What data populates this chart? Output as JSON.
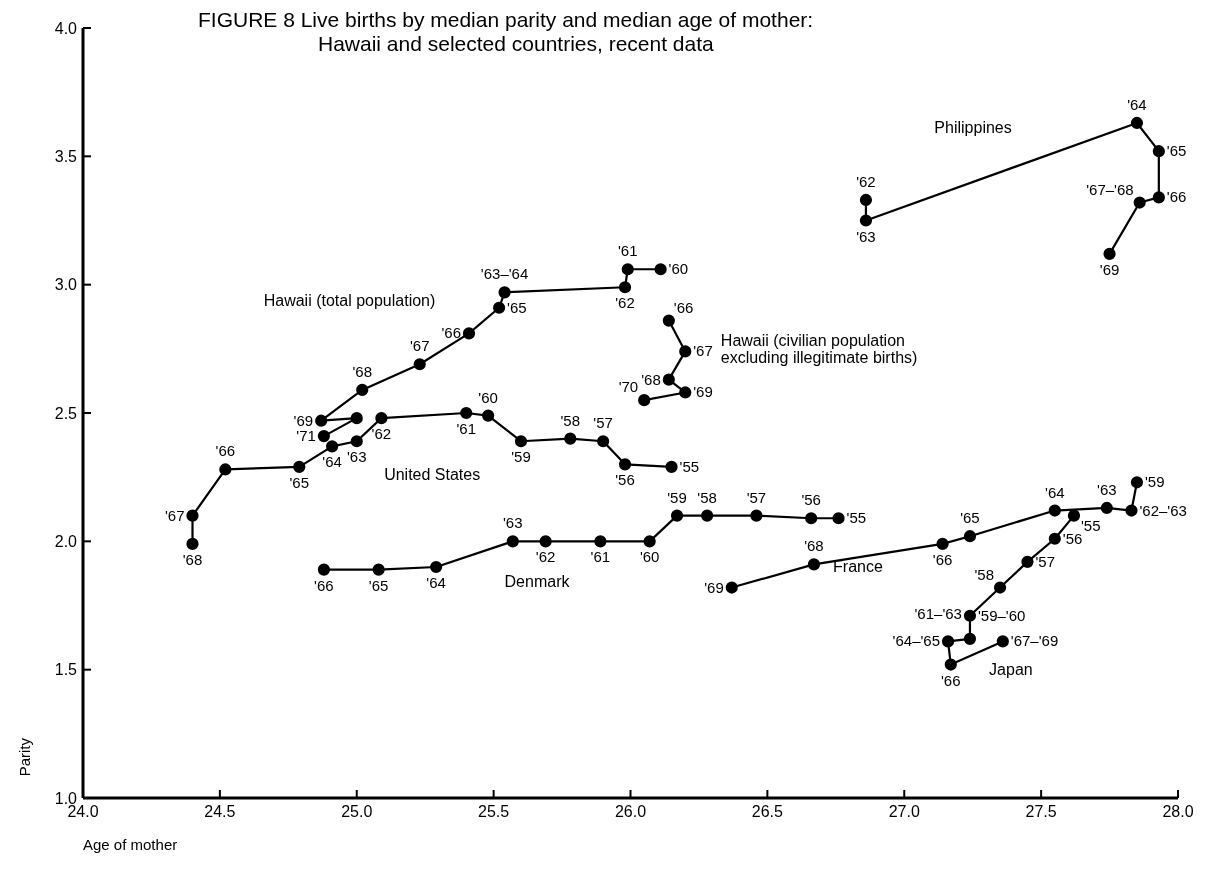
{
  "chart_data": {
    "type": "line",
    "title": "FIGURE 8  Live births by median parity and median age of mother:\nHawaii and selected countries, recent data",
    "xlabel": "Age of mother",
    "ylabel": "Parity",
    "marker": "circle",
    "xlim": [
      24,
      28
    ],
    "ylim": [
      1,
      4
    ],
    "xticks": [
      {
        "value": 24,
        "label": "24.0"
      },
      24.5,
      {
        "value": 25,
        "label": "25.0"
      },
      25.5,
      {
        "value": 26,
        "label": "26.0"
      },
      26.5,
      {
        "value": 27,
        "label": "27.0"
      },
      27.5,
      {
        "value": 28,
        "label": "28.0"
      }
    ],
    "yticks": [
      {
        "value": 1,
        "label": "1.0"
      },
      1.5,
      {
        "value": 2,
        "label": "2.0"
      },
      2.5,
      {
        "value": 3,
        "label": "3.0"
      },
      3.5,
      {
        "value": 4,
        "label": "4.0"
      }
    ],
    "series": [
      {
        "name": "Hawaii (total population)",
        "color": "#000000",
        "x": [
          26.11,
          25.99,
          25.98,
          25.54,
          25.52,
          25.41,
          25.23,
          25.02,
          24.87,
          25.0,
          24.88
        ],
        "values": [
          3.06,
          3.06,
          2.99,
          2.97,
          2.91,
          2.81,
          2.69,
          2.59,
          2.47,
          2.48,
          2.41
        ]
      },
      {
        "name": "Hawaii (civilian population\nexcluding illegitimate births)",
        "color": "#000000",
        "x": [
          26.14,
          26.2,
          26.14,
          26.2,
          26.05
        ],
        "values": [
          2.86,
          2.74,
          2.63,
          2.58,
          2.55
        ]
      },
      {
        "name": "United States",
        "color": "#000000",
        "x": [
          26.15,
          25.98,
          25.9,
          25.78,
          25.6,
          25.48,
          25.4,
          25.09,
          25.0,
          24.91,
          24.79,
          24.52,
          24.4,
          24.4
        ],
        "values": [
          2.29,
          2.3,
          2.39,
          2.4,
          2.39,
          2.49,
          2.5,
          2.48,
          2.39,
          2.37,
          2.29,
          2.28,
          2.1,
          1.99
        ]
      },
      {
        "name": "Denmark",
        "color": "#000000",
        "x": [
          26.76,
          26.66,
          26.46,
          26.28,
          26.17,
          26.07,
          25.89,
          25.69,
          25.57,
          25.29,
          25.08,
          24.88
        ],
        "values": [
          2.09,
          2.09,
          2.1,
          2.1,
          2.1,
          2.0,
          2.0,
          2.0,
          2.0,
          1.9,
          1.89,
          1.89
        ]
      },
      {
        "name": "France",
        "color": "#000000",
        "x": [
          26.37,
          26.67,
          27.14,
          27.24,
          27.55,
          27.74,
          27.83,
          27.85
        ],
        "values": [
          1.82,
          1.91,
          1.99,
          2.02,
          2.12,
          2.13,
          2.12,
          2.23
        ]
      },
      {
        "name": "Japan",
        "color": "#000000",
        "x": [
          27.62,
          27.55,
          27.45,
          27.35,
          27.24,
          27.24,
          27.16,
          27.17,
          27.36
        ],
        "values": [
          2.1,
          2.01,
          1.92,
          1.82,
          1.71,
          1.62,
          1.61,
          1.52,
          1.61
        ]
      },
      {
        "name": "Philippines",
        "color": "#000000",
        "x": [
          26.86,
          26.86,
          27.85,
          27.93,
          27.93,
          27.86,
          27.75
        ],
        "values": [
          3.33,
          3.25,
          3.63,
          3.52,
          3.34,
          3.32,
          3.12
        ]
      }
    ],
    "annotations": [
      {
        "text": "'60",
        "x": 26.11,
        "y": 3.06
      },
      {
        "text": "'61",
        "x": 25.99,
        "y": 3.06
      },
      {
        "text": "'62",
        "x": 25.98,
        "y": 2.99
      },
      {
        "text": "'63–'64",
        "x": 25.54,
        "y": 2.97
      },
      {
        "text": "'65",
        "x": 25.52,
        "y": 2.91
      },
      {
        "text": "'66",
        "x": 25.41,
        "y": 2.81
      },
      {
        "text": "'67",
        "x": 25.23,
        "y": 2.69
      },
      {
        "text": "'68",
        "x": 25.02,
        "y": 2.59
      },
      {
        "text": "'69",
        "x": 24.87,
        "y": 2.47
      },
      {
        "text": "'71",
        "x": 24.88,
        "y": 2.41
      },
      {
        "text": "'66",
        "x": 26.14,
        "y": 2.86
      },
      {
        "text": "'67",
        "x": 26.2,
        "y": 2.74
      },
      {
        "text": "'68",
        "x": 26.14,
        "y": 2.63
      },
      {
        "text": "'69",
        "x": 26.2,
        "y": 2.58
      },
      {
        "text": "'70",
        "x": 26.05,
        "y": 2.55
      },
      {
        "text": "'55",
        "x": 26.15,
        "y": 2.29
      },
      {
        "text": "'56",
        "x": 25.98,
        "y": 2.3
      },
      {
        "text": "'57",
        "x": 25.9,
        "y": 2.39
      },
      {
        "text": "'58",
        "x": 25.78,
        "y": 2.4
      },
      {
        "text": "'59",
        "x": 25.6,
        "y": 2.39
      },
      {
        "text": "'60",
        "x": 25.48,
        "y": 2.49
      },
      {
        "text": "'61",
        "x": 25.4,
        "y": 2.5
      },
      {
        "text": "'62",
        "x": 25.09,
        "y": 2.48
      },
      {
        "text": "'63",
        "x": 25.0,
        "y": 2.39
      },
      {
        "text": "'64",
        "x": 24.91,
        "y": 2.37
      },
      {
        "text": "'65",
        "x": 24.79,
        "y": 2.29
      },
      {
        "text": "'66",
        "x": 24.52,
        "y": 2.28
      },
      {
        "text": "'67",
        "x": 24.4,
        "y": 2.1
      },
      {
        "text": "'68",
        "x": 24.4,
        "y": 1.99
      },
      {
        "text": "'55",
        "x": 26.76,
        "y": 2.09
      },
      {
        "text": "'56",
        "x": 26.66,
        "y": 2.09
      },
      {
        "text": "'57",
        "x": 26.46,
        "y": 2.1
      },
      {
        "text": "'58",
        "x": 26.28,
        "y": 2.1
      },
      {
        "text": "'59",
        "x": 26.17,
        "y": 2.1
      },
      {
        "text": "'60",
        "x": 26.07,
        "y": 2.0
      },
      {
        "text": "'61",
        "x": 25.89,
        "y": 2.0
      },
      {
        "text": "'62",
        "x": 25.69,
        "y": 2.0
      },
      {
        "text": "'63",
        "x": 25.57,
        "y": 2.0
      },
      {
        "text": "'64",
        "x": 25.29,
        "y": 1.9
      },
      {
        "text": "'65",
        "x": 25.08,
        "y": 1.89
      },
      {
        "text": "'66",
        "x": 24.88,
        "y": 1.89
      },
      {
        "text": "'69",
        "x": 26.37,
        "y": 1.82
      },
      {
        "text": "'68",
        "x": 26.67,
        "y": 1.91
      },
      {
        "text": "'66",
        "x": 27.14,
        "y": 1.99
      },
      {
        "text": "'65",
        "x": 27.24,
        "y": 2.02
      },
      {
        "text": "'64",
        "x": 27.55,
        "y": 2.12
      },
      {
        "text": "'63",
        "x": 27.74,
        "y": 2.13
      },
      {
        "text": "'62–'63",
        "x": 27.83,
        "y": 2.12
      },
      {
        "text": "'59",
        "x": 27.85,
        "y": 2.23
      },
      {
        "text": "'55",
        "x": 27.62,
        "y": 2.1
      },
      {
        "text": "'56",
        "x": 27.55,
        "y": 2.01
      },
      {
        "text": "'57",
        "x": 27.45,
        "y": 1.92
      },
      {
        "text": "'58",
        "x": 27.35,
        "y": 1.82
      },
      {
        "text": "'59–'60",
        "x": 27.24,
        "y": 1.71
      },
      {
        "text": "'61–'63",
        "x": 27.24,
        "y": 1.62
      },
      {
        "text": "'64–'65",
        "x": 27.16,
        "y": 1.61
      },
      {
        "text": "'66",
        "x": 27.17,
        "y": 1.52
      },
      {
        "text": "'67–'69",
        "x": 27.36,
        "y": 1.61
      },
      {
        "text": "'62",
        "x": 26.86,
        "y": 3.33
      },
      {
        "text": "'63",
        "x": 26.86,
        "y": 3.25
      },
      {
        "text": "'64",
        "x": 27.85,
        "y": 3.63
      },
      {
        "text": "'65",
        "x": 27.93,
        "y": 3.52
      },
      {
        "text": "'66",
        "x": 27.93,
        "y": 3.34
      },
      {
        "text": "'67–'68",
        "x": 27.86,
        "y": 3.32
      },
      {
        "text": "'69",
        "x": 27.75,
        "y": 3.12
      }
    ]
  }
}
